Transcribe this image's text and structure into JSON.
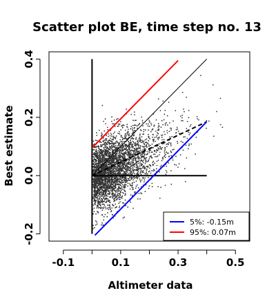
{
  "chart_data": {
    "type": "scatter",
    "title": "Scatter plot BE, time step no. 13",
    "xlabel": "Altimeter data",
    "ylabel": "Best estimate",
    "xlim": [
      -0.15,
      0.55
    ],
    "ylim": [
      -0.225,
      0.425
    ],
    "xticks": [
      {
        "value": -0.1,
        "label": "-0.1"
      },
      {
        "value": 0.1,
        "label": "0.1"
      },
      {
        "value": 0.3,
        "label": "0.3"
      },
      {
        "value": 0.5,
        "label": "0.5"
      }
    ],
    "yticks": [
      {
        "value": -0.2,
        "label": "-0.2"
      },
      {
        "value": 0.0,
        "label": "0.0"
      },
      {
        "value": 0.2,
        "label": "0.2"
      },
      {
        "value": 0.4,
        "label": "0.4"
      }
    ],
    "x_minor_ticks": [
      0.0,
      0.2,
      0.4
    ],
    "lines": [
      {
        "name": "x-axis zero line",
        "color": "#000000",
        "style": "solid",
        "width": 2,
        "points": [
          [
            0,
            0
          ],
          [
            0.4,
            0
          ]
        ]
      },
      {
        "name": "y-axis zero line",
        "color": "#000000",
        "style": "solid",
        "width": 2,
        "points": [
          [
            0,
            -0.2
          ],
          [
            0,
            0.4
          ]
        ]
      },
      {
        "name": "1:1 line",
        "color": "#000000",
        "style": "solid",
        "width": 1,
        "points": [
          [
            0,
            0
          ],
          [
            0.4,
            0.4
          ]
        ]
      },
      {
        "name": "regression",
        "color": "#000000",
        "style": "dashed",
        "width": 2,
        "points": [
          [
            0,
            0
          ],
          [
            0.4,
            0.185
          ]
        ]
      },
      {
        "name": "5%",
        "color": "#0000ff",
        "style": "solid",
        "width": 2,
        "points": [
          [
            0.01,
            -0.205
          ],
          [
            0.4,
            0.185
          ]
        ]
      },
      {
        "name": "95%",
        "color": "#ff0000",
        "style": "solid",
        "width": 2,
        "points": [
          [
            0,
            0.095
          ],
          [
            0.3,
            0.395
          ]
        ]
      }
    ],
    "scatter": {
      "color": "#333333",
      "n_points": 3500,
      "seed": 13
    },
    "legend": {
      "position": "bottom-right",
      "entries": [
        {
          "label": "5%: -0.15m",
          "color": "#0000ff"
        },
        {
          "label": "95%:  0.07m",
          "color": "#ff0000"
        }
      ]
    }
  }
}
